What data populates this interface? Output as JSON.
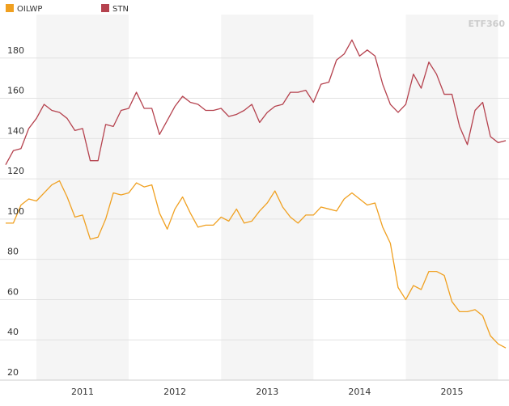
{
  "chart_data": {
    "type": "line",
    "watermark": "ETF360",
    "x": [
      2010.667,
      2010.75,
      2010.833,
      2010.917,
      2011,
      2011.083,
      2011.167,
      2011.25,
      2011.333,
      2011.417,
      2011.5,
      2011.583,
      2011.667,
      2011.75,
      2011.833,
      2011.917,
      2012,
      2012.083,
      2012.167,
      2012.25,
      2012.333,
      2012.417,
      2012.5,
      2012.583,
      2012.667,
      2012.75,
      2012.833,
      2012.917,
      2013,
      2013.083,
      2013.167,
      2013.25,
      2013.333,
      2013.417,
      2013.5,
      2013.583,
      2013.667,
      2013.75,
      2013.833,
      2013.917,
      2014,
      2014.083,
      2014.167,
      2014.25,
      2014.333,
      2014.417,
      2014.5,
      2014.583,
      2014.667,
      2014.75,
      2014.833,
      2014.917,
      2015,
      2015.083,
      2015.167,
      2015.25,
      2015.333,
      2015.417,
      2015.5,
      2015.583,
      2015.667,
      2015.75,
      2015.833,
      2015.917,
      2016,
      2016.083
    ],
    "series": [
      {
        "name": "OILWP",
        "color": "#f0a020",
        "values": [
          98,
          98,
          107,
          110,
          109,
          113,
          117,
          119,
          111,
          101,
          102,
          90,
          91,
          100,
          113,
          112,
          113,
          118,
          116,
          117,
          103,
          95,
          105,
          111,
          103,
          96,
          97,
          97,
          101,
          99,
          105,
          98,
          99,
          104,
          108,
          114,
          106,
          101,
          98,
          102,
          102,
          106,
          105,
          104,
          110,
          113,
          110,
          107,
          108,
          96,
          88,
          66,
          60,
          67,
          65,
          74,
          74,
          72,
          59,
          54,
          54,
          55,
          52,
          42,
          38,
          36
        ]
      },
      {
        "name": "STN",
        "color": "#b5424e",
        "values": [
          127,
          134,
          135,
          145,
          150,
          157,
          154,
          153,
          150,
          144,
          145,
          129,
          129,
          147,
          146,
          154,
          155,
          163,
          155,
          155,
          142,
          149,
          156,
          161,
          158,
          157,
          154,
          154,
          155,
          151,
          152,
          154,
          157,
          148,
          153,
          156,
          157,
          163,
          163,
          164,
          158,
          167,
          168,
          179,
          182,
          189,
          181,
          184,
          181,
          167,
          157,
          153,
          157,
          172,
          165,
          178,
          172,
          162,
          162,
          146,
          137,
          154,
          158,
          141,
          138,
          139
        ]
      }
    ],
    "xlim": [
      2010.667,
      2016.083
    ],
    "xticks": [
      {
        "value": 2011.5,
        "label": "2011"
      },
      {
        "value": 2012.5,
        "label": "2012"
      },
      {
        "value": 2013.5,
        "label": "2013"
      },
      {
        "value": 2014.5,
        "label": "2014"
      },
      {
        "value": 2015.5,
        "label": "2015"
      }
    ],
    "ylim": [
      20,
      200
    ],
    "yticks": [
      20,
      40,
      60,
      80,
      100,
      120,
      140,
      160,
      180
    ],
    "grid": true,
    "legend": "top-left"
  }
}
